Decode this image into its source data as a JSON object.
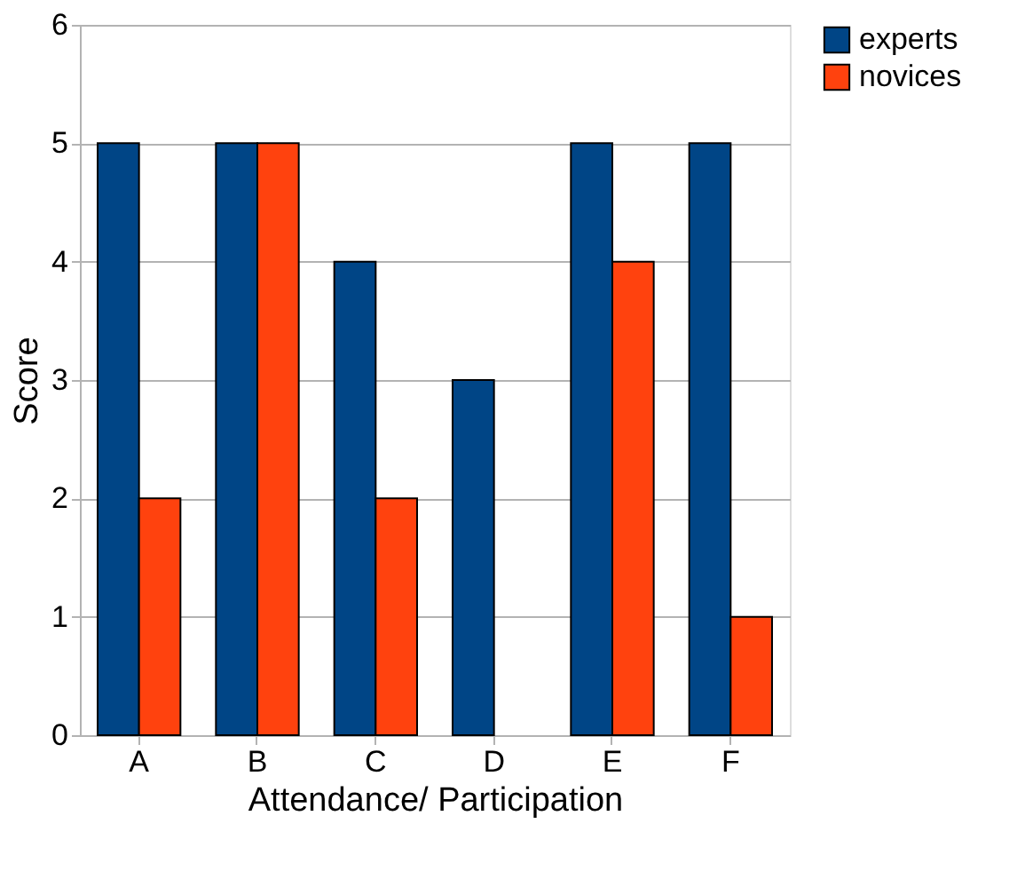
{
  "chart_data": {
    "type": "bar",
    "xlabel": "Attendance/ Participation",
    "ylabel": "Score",
    "categories": [
      "A",
      "B",
      "C",
      "D",
      "E",
      "F"
    ],
    "series": [
      {
        "name": "experts",
        "color": "#004586",
        "values": [
          5,
          5,
          4,
          3,
          5,
          5
        ]
      },
      {
        "name": "novices",
        "color": "#ff420e",
        "values": [
          2,
          5,
          2,
          null,
          4,
          1
        ]
      }
    ],
    "ylim": [
      0,
      6
    ],
    "yticks": [
      0,
      1,
      2,
      3,
      4,
      5,
      6
    ],
    "grid": "y",
    "legend": "right"
  }
}
